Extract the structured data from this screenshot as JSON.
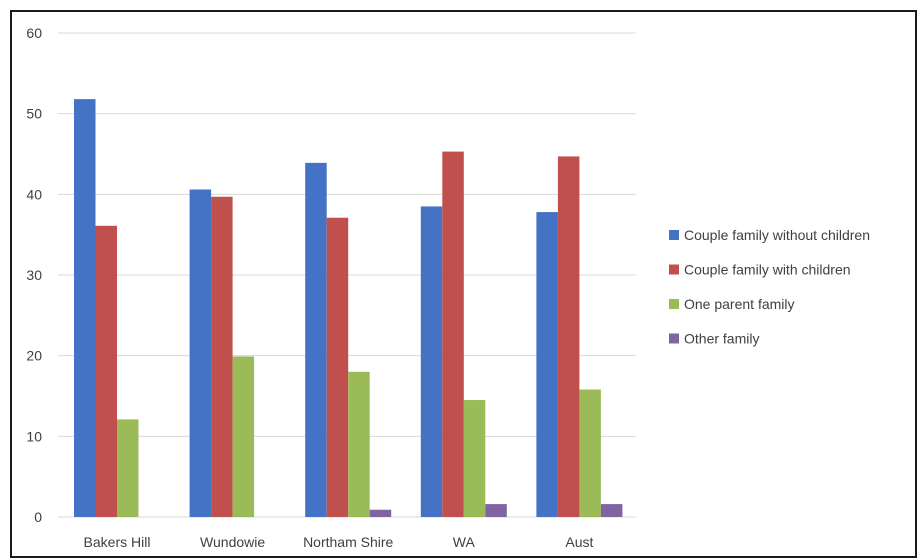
{
  "chart_data": {
    "type": "bar",
    "title": "",
    "xlabel": "",
    "ylabel": "",
    "ylim": [
      0,
      60
    ],
    "yticks": [
      0,
      10,
      20,
      30,
      40,
      50,
      60
    ],
    "grid": true,
    "legend_position": "right",
    "categories": [
      "Bakers Hill",
      "Wundowie",
      "Northam Shire",
      "WA",
      "Aust"
    ],
    "series": [
      {
        "name": "Couple family without children",
        "color": "#4472C4",
        "values": [
          51.8,
          40.6,
          43.9,
          38.5,
          37.8
        ]
      },
      {
        "name": "Couple family with children",
        "color": "#C0504D",
        "values": [
          36.1,
          39.7,
          37.1,
          45.3,
          44.7
        ]
      },
      {
        "name": "One parent family",
        "color": "#9BBB59",
        "values": [
          12.1,
          19.9,
          18.0,
          14.5,
          15.8
        ]
      },
      {
        "name": "Other family",
        "color": "#8064A2",
        "values": [
          0,
          0,
          0.9,
          1.6,
          1.6
        ]
      }
    ]
  }
}
